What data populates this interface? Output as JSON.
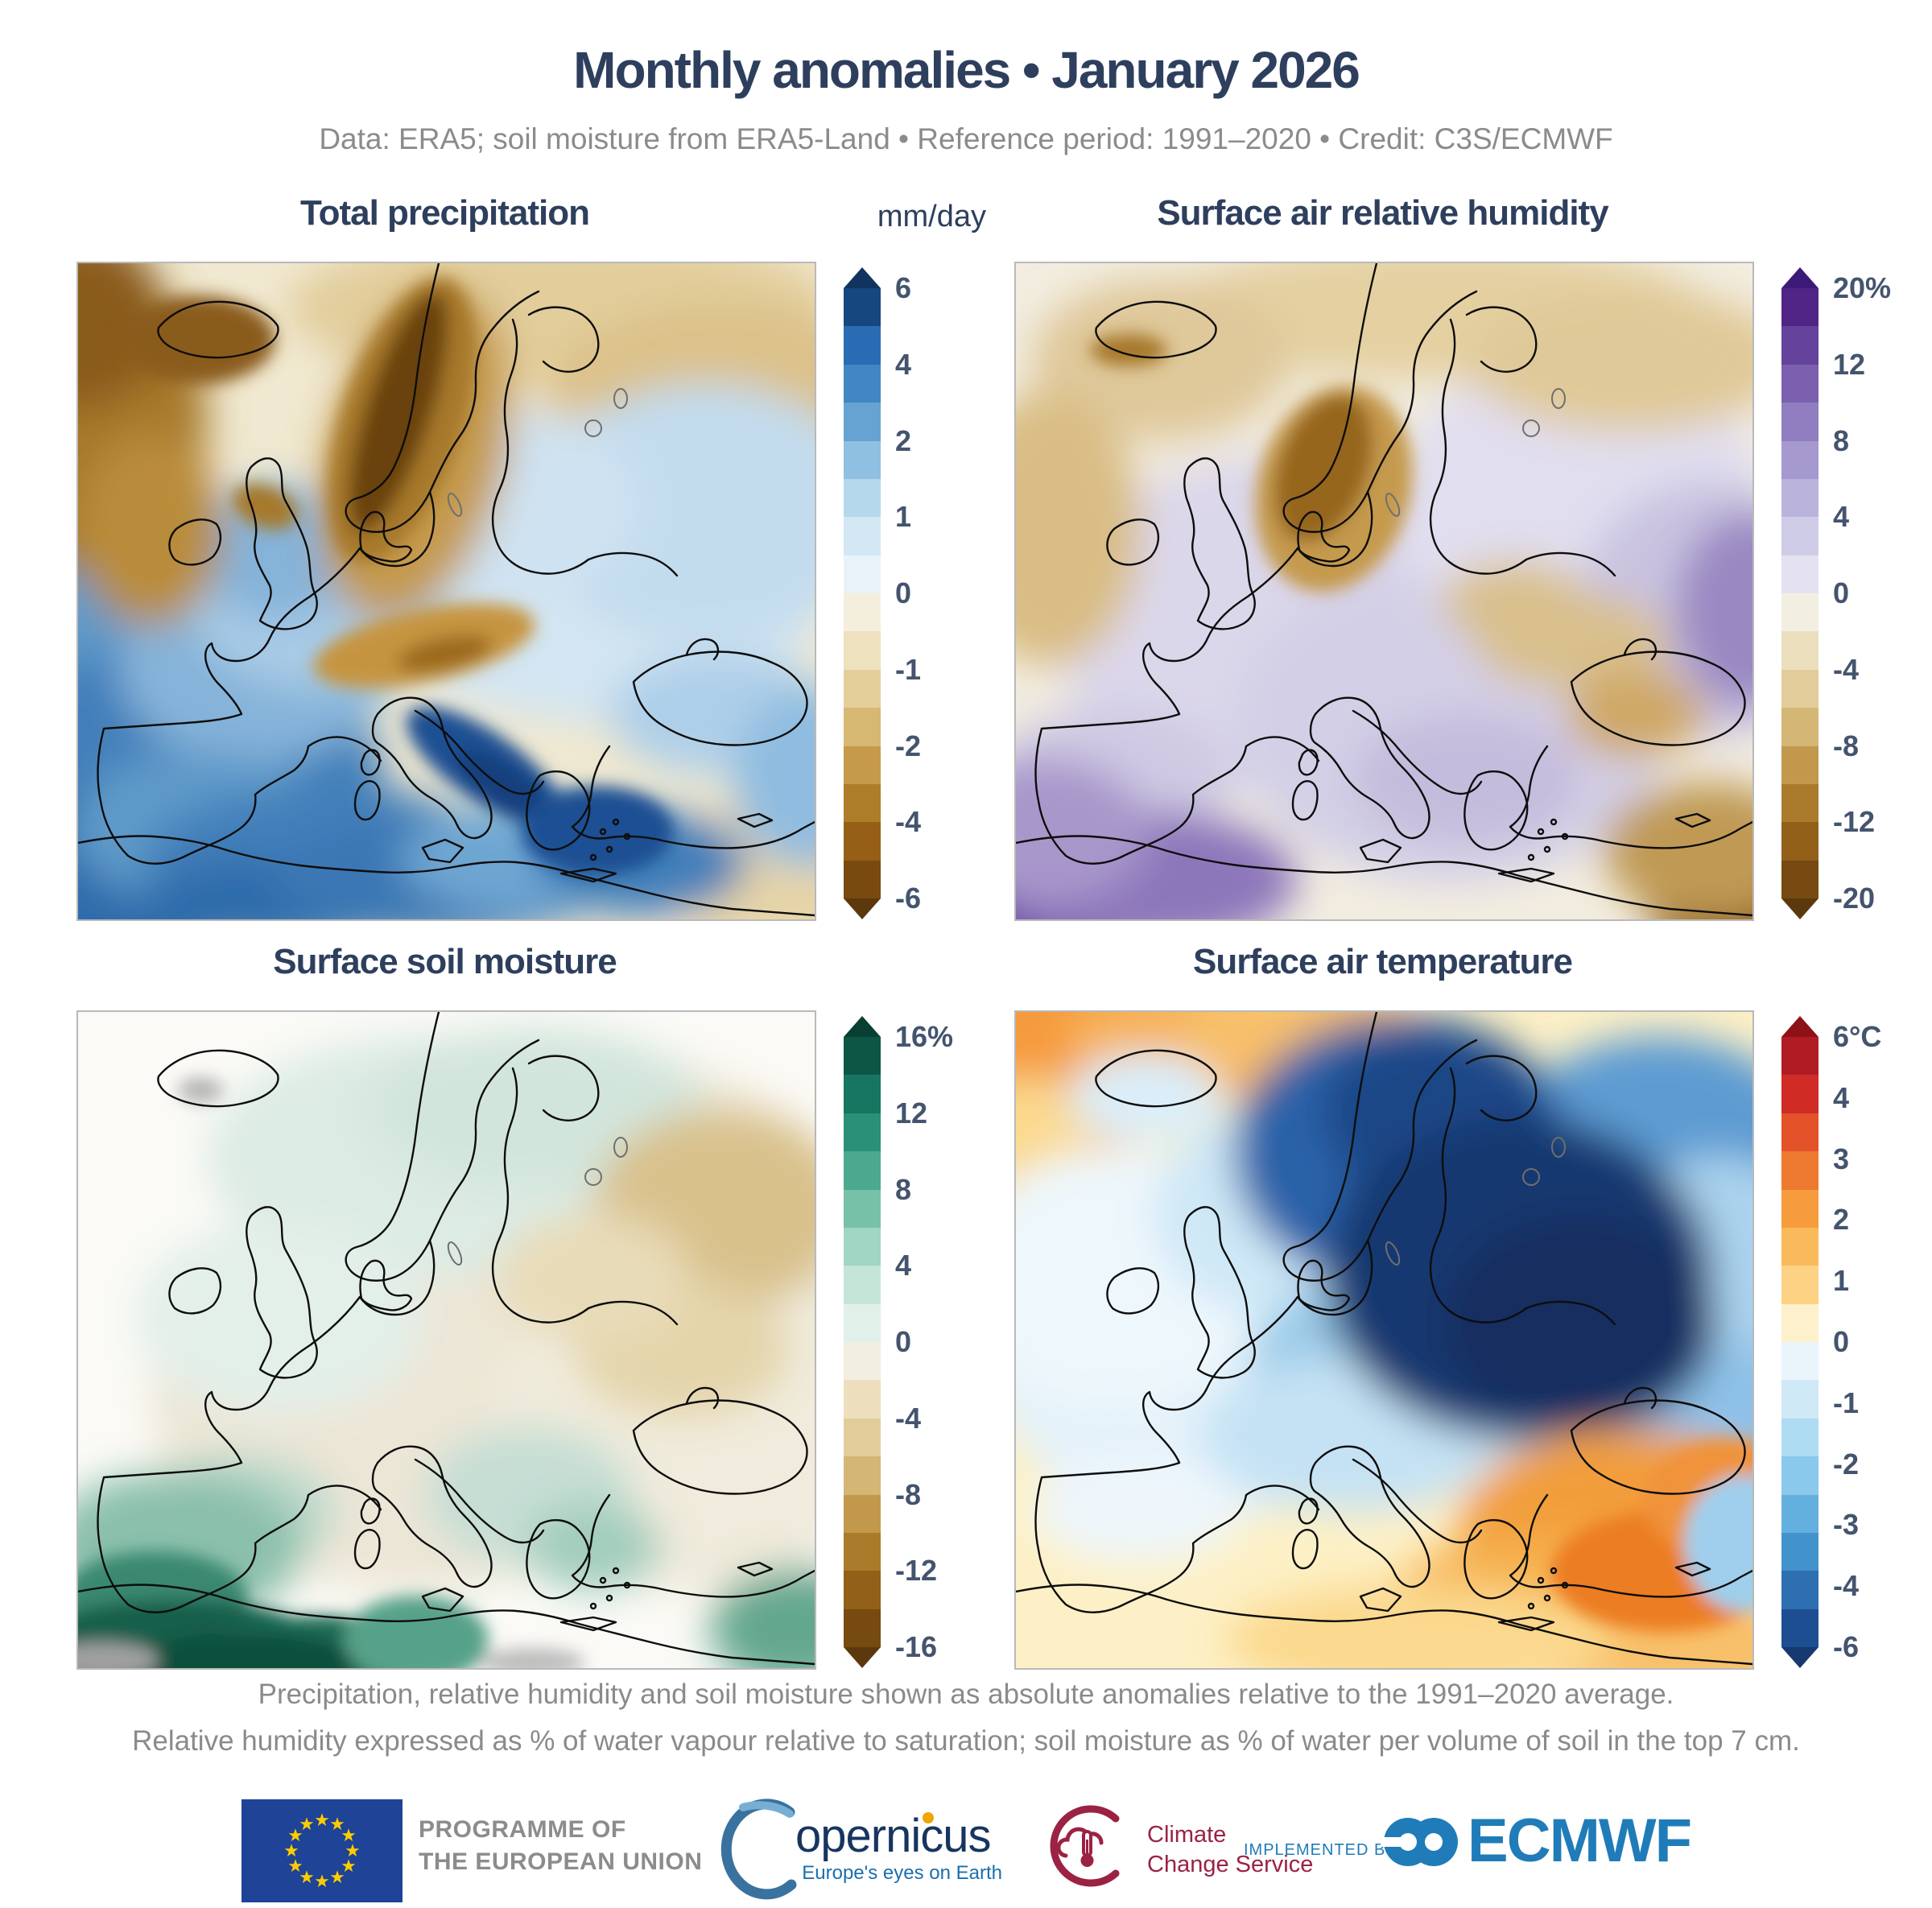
{
  "header": {
    "title": "Monthly anomalies • January 2026",
    "subtitle": "Data: ERA5; soil moisture from ERA5-Land • Reference period: 1991–2020 • Credit: C3S/ECMWF"
  },
  "panels": [
    {
      "id": "total-precipitation",
      "title": "Total precipitation",
      "unit": "mm/day",
      "colorbar": {
        "labels": [
          "6",
          "4",
          "2",
          "1",
          "0",
          "-1",
          "-2",
          "-4",
          "-6"
        ],
        "positions": [
          0,
          0.125,
          0.25,
          0.375,
          0.5,
          0.625,
          0.75,
          0.875,
          1
        ],
        "colors": [
          "#16477f",
          "#2a6cb3",
          "#4287c3",
          "#66a3d2",
          "#8fc0e1",
          "#b5d8ec",
          "#d3e8f4",
          "#e9f2f8",
          "#f4efdd",
          "#eee1bd",
          "#e4cf9a",
          "#d7b873",
          "#c59a4b",
          "#ae7d2a",
          "#955f18",
          "#784a10"
        ],
        "cap_top": "#10345f",
        "cap_bottom": "#5c390c"
      }
    },
    {
      "id": "surface-air-relative-humidity",
      "title": "Surface air relative humidity",
      "unit": "",
      "colorbar": {
        "labels": [
          "20%",
          "12",
          "8",
          "4",
          "0",
          "-4",
          "-8",
          "-12",
          "-20"
        ],
        "positions": [
          0,
          0.125,
          0.25,
          0.375,
          0.5,
          0.625,
          0.75,
          0.875,
          1
        ],
        "colors": [
          "#512585",
          "#65429b",
          "#7a60ae",
          "#907ec0",
          "#a599ce",
          "#bab3db",
          "#cfcce7",
          "#e4e2f1",
          "#f2efe2",
          "#ecdfbe",
          "#e2cd9a",
          "#d4b675",
          "#c2984c",
          "#aa7b2b",
          "#926019",
          "#764a10"
        ],
        "cap_top": "#3d1a78",
        "cap_bottom": "#5c390c"
      }
    },
    {
      "id": "surface-soil-moisture",
      "title": "Surface soil moisture",
      "unit": "",
      "colorbar": {
        "labels": [
          "16%",
          "12",
          "8",
          "4",
          "0",
          "-4",
          "-8",
          "-12",
          "-16"
        ],
        "positions": [
          0,
          0.125,
          0.25,
          0.375,
          0.5,
          0.625,
          0.75,
          0.875,
          1
        ],
        "colors": [
          "#0d5646",
          "#167661",
          "#2a9077",
          "#4da98e",
          "#77c1a9",
          "#a1d5c4",
          "#c5e5d9",
          "#e1f1ea",
          "#f2efe0",
          "#eddfbe",
          "#e2cd9a",
          "#d4b675",
          "#c2984c",
          "#aa7b2b",
          "#926019",
          "#764a10"
        ],
        "cap_top": "#093f33",
        "cap_bottom": "#5c390c"
      }
    },
    {
      "id": "surface-air-temperature",
      "title": "Surface air temperature",
      "unit": "",
      "colorbar": {
        "labels": [
          "6°C",
          "4",
          "3",
          "2",
          "1",
          "0",
          "-1",
          "-2",
          "-3",
          "-4",
          "-6"
        ],
        "positions": [
          0,
          0.1,
          0.2,
          0.3,
          0.4,
          0.5,
          0.6,
          0.7,
          0.8,
          0.9,
          1
        ],
        "colors": [
          "#b11c24",
          "#d02b25",
          "#e35229",
          "#ee7930",
          "#f69c3d",
          "#fab95a",
          "#fcd384",
          "#fdf0cd",
          "#eaf5fb",
          "#cfe9f7",
          "#aedcf3",
          "#8ac9ec",
          "#63b0de",
          "#4292cc",
          "#2d6fb0",
          "#1e4e92"
        ],
        "cap_top": "#8c1218",
        "cap_bottom": "#16396f"
      }
    }
  ],
  "footer": {
    "line1": "Precipitation, relative humidity and soil moisture shown as absolute anomalies relative to the 1991–2020 average.",
    "line2": "Relative humidity expressed as % of water vapour relative to saturation; soil moisture as % of water per volume of soil in the top 7 cm."
  },
  "logos": {
    "eu_line1": "PROGRAMME OF",
    "eu_line2": "THE EUROPEAN UNION",
    "copernicus_word": "opernicus",
    "copernicus_tagline": "Europe's eyes on Earth",
    "ccs_line1": "Climate",
    "ccs_line2": "Change Service",
    "implemented_by": "IMPLEMENTED BY",
    "ecmwf": "ECMWF"
  },
  "colors": {
    "title_navy": "#2e3f5e",
    "subtitle_gray": "#8b8b8b",
    "label_navy": "#44546e",
    "ecmwf_blue": "#1f7cb8",
    "ccs_maroon": "#9b2242",
    "eu_blue": "#1e4397",
    "eu_star_yellow": "#ffcc00"
  }
}
